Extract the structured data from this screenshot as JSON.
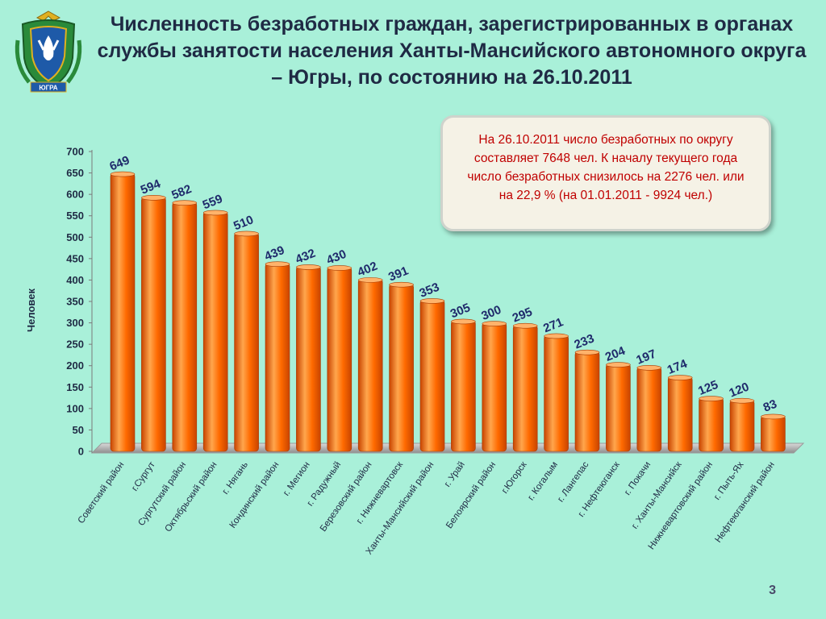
{
  "slide": {
    "title": "Численность безработных граждан, зарегистрированных в органах службы занятости населения Ханты-Мансийского автономного округа – Югры, по состоянию на 26.10.2011",
    "callout": "На 26.10.2011 число безработных по округу составляет  7648 чел. К началу текущего года число безработных снизилось на 2276 чел. или на 22,9 % (на 01.01.2011 - 9924 чел.)",
    "page_number": "3",
    "emblem_text": "ЮГРА"
  },
  "colors": {
    "background": "#a9f0d9",
    "bar": "#ff6a00",
    "bar_dark": "#c84400",
    "bar_light": "#ffa64d",
    "value_label": "#1f2a6b",
    "callout_text": "#c00000"
  },
  "chart_data": {
    "type": "bar",
    "title": "",
    "xlabel": "",
    "ylabel": "Человек",
    "ylim": [
      0,
      700
    ],
    "yticks": [
      0,
      50,
      100,
      150,
      200,
      250,
      300,
      350,
      400,
      450,
      500,
      550,
      600,
      650,
      700
    ],
    "grid": false,
    "categories": [
      "Советский район",
      "г.Сургут",
      "Сургутский район",
      "Октябрьский район",
      "г. Нягань",
      "Кондинский район",
      "г. Мегион",
      "г. Радужный",
      "Березовский район",
      "г. Нижневартовск",
      "Ханты-Мансийский район",
      "г. Урай",
      "Белоярский район",
      "г.Югорск",
      "г. Когалым",
      "г. Лангепас",
      "г. Нефтеюганск",
      "г. Покачи",
      "г. Ханты-Мансийск",
      "Нижневартовский район",
      "г. Пыть-Ях",
      "Нефтеюганский район"
    ],
    "values": [
      649,
      594,
      582,
      559,
      510,
      439,
      432,
      430,
      402,
      391,
      353,
      305,
      300,
      295,
      271,
      233,
      204,
      197,
      174,
      125,
      120,
      83
    ]
  }
}
